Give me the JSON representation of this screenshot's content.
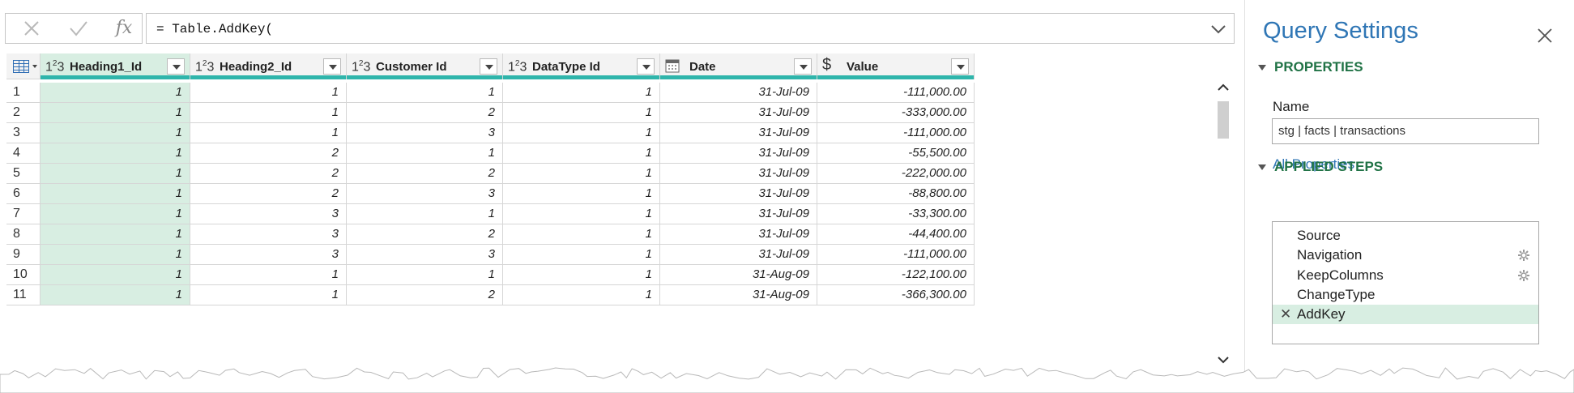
{
  "formula_bar": {
    "cancel_icon": "close-icon",
    "confirm_icon": "check-icon",
    "fx_label": "fx",
    "formula": "= Table.AddKey(",
    "expand_icon": "chevron-down-icon"
  },
  "grid": {
    "columns": [
      {
        "type": "123",
        "label": "Heading1_Id"
      },
      {
        "type": "123",
        "label": "Heading2_Id"
      },
      {
        "type": "123",
        "label": "Customer Id"
      },
      {
        "type": "123",
        "label": "DataType Id"
      },
      {
        "type": "date",
        "label": "Date"
      },
      {
        "type": "currency",
        "label": "Value"
      }
    ],
    "rows": [
      {
        "n": "1",
        "cells": [
          "1",
          "1",
          "1",
          "1",
          "31-Jul-09",
          "-111,000.00"
        ]
      },
      {
        "n": "2",
        "cells": [
          "1",
          "1",
          "2",
          "1",
          "31-Jul-09",
          "-333,000.00"
        ]
      },
      {
        "n": "3",
        "cells": [
          "1",
          "1",
          "3",
          "1",
          "31-Jul-09",
          "-111,000.00"
        ]
      },
      {
        "n": "4",
        "cells": [
          "1",
          "2",
          "1",
          "1",
          "31-Jul-09",
          "-55,500.00"
        ]
      },
      {
        "n": "5",
        "cells": [
          "1",
          "2",
          "2",
          "1",
          "31-Jul-09",
          "-222,000.00"
        ]
      },
      {
        "n": "6",
        "cells": [
          "1",
          "2",
          "3",
          "1",
          "31-Jul-09",
          "-88,800.00"
        ]
      },
      {
        "n": "7",
        "cells": [
          "1",
          "3",
          "1",
          "1",
          "31-Jul-09",
          "-33,300.00"
        ]
      },
      {
        "n": "8",
        "cells": [
          "1",
          "3",
          "2",
          "1",
          "31-Jul-09",
          "-44,400.00"
        ]
      },
      {
        "n": "9",
        "cells": [
          "1",
          "3",
          "3",
          "1",
          "31-Jul-09",
          "-111,000.00"
        ]
      },
      {
        "n": "10",
        "cells": [
          "1",
          "1",
          "1",
          "1",
          "31-Aug-09",
          "-122,100.00"
        ]
      },
      {
        "n": "11",
        "cells": [
          "1",
          "1",
          "2",
          "1",
          "31-Aug-09",
          "-366,300.00"
        ]
      }
    ]
  },
  "query_settings": {
    "title": "Query Settings",
    "properties_header": "PROPERTIES",
    "name_label": "Name",
    "name_value": "stg | facts | transactions",
    "all_properties": "All Properties",
    "applied_steps_header": "APPLIED STEPS",
    "steps": [
      {
        "label": "Source",
        "gear": false,
        "selected": false
      },
      {
        "label": "Navigation",
        "gear": true,
        "selected": false
      },
      {
        "label": "KeepColumns",
        "gear": true,
        "selected": false
      },
      {
        "label": "ChangeType",
        "gear": false,
        "selected": false
      },
      {
        "label": "AddKey",
        "gear": false,
        "selected": true
      }
    ]
  },
  "colors": {
    "accent": "#2f76b5",
    "section": "#217346",
    "selected": "#d8eee2",
    "column_quality": "#2fb5ab"
  }
}
